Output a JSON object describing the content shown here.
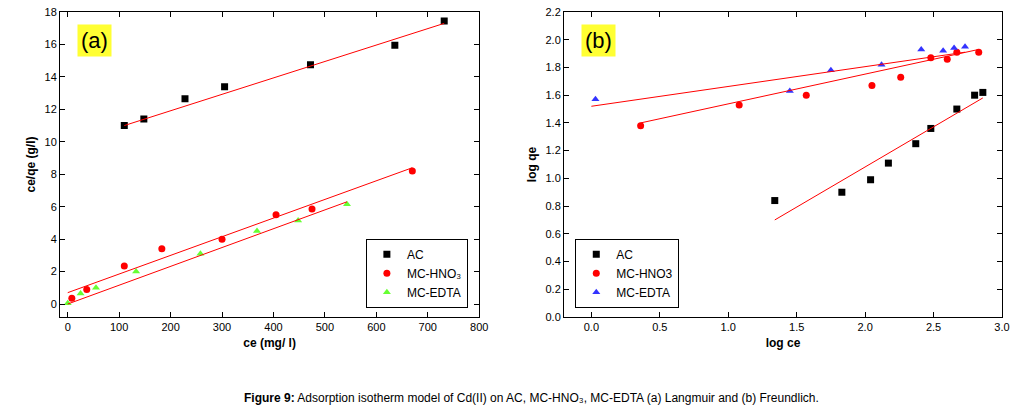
{
  "caption": "Figure 9: Adsorption isotherm model of Cd(II) on AC, MC-HNO₃, MC-EDTA (a) Langmuir and (b) Freundlich.",
  "chart_data": [
    {
      "type": "scatter",
      "title": "(a)",
      "x_label": "ce (mg/ l)",
      "y_label": "ce/qe (g/l)",
      "xlim": [
        -15,
        800
      ],
      "xticks": [
        0,
        100,
        200,
        300,
        400,
        500,
        600,
        700,
        800
      ],
      "ylim": [
        -0.8,
        18
      ],
      "yticks": [
        0,
        2,
        4,
        6,
        8,
        10,
        12,
        14,
        16,
        18
      ],
      "grid": false,
      "legend": "lower right",
      "series": [
        {
          "name": "AC",
          "type": "scatter",
          "color": "#000000",
          "marker": "square",
          "x": [
            110,
            148,
            228,
            305,
            472,
            636,
            732
          ],
          "values": [
            11.0,
            11.4,
            12.65,
            13.4,
            14.75,
            15.95,
            17.45
          ]
        },
        {
          "name": "MC-HNO₃",
          "type": "scatter",
          "color": "#ff0000",
          "marker": "circle",
          "x": [
            8,
            37,
            110,
            183,
            300,
            405,
            475,
            670
          ],
          "values": [
            0.35,
            0.9,
            2.35,
            3.4,
            4.0,
            5.5,
            5.85,
            8.2
          ]
        },
        {
          "name": "MC-EDTA",
          "type": "scatter",
          "color": "#66ff33",
          "marker": "triangle-up",
          "x": [
            0,
            25,
            55,
            133,
            258,
            368,
            448,
            543
          ],
          "values": [
            0.05,
            0.65,
            1.0,
            2.0,
            3.1,
            4.5,
            5.15,
            6.15
          ]
        },
        {
          "type": "line",
          "color": "#ff0000",
          "line_style": "solid",
          "x": [
            110,
            732
          ],
          "values": [
            11.0,
            17.3
          ]
        },
        {
          "type": "line",
          "color": "#ff0000",
          "line_style": "solid",
          "x": [
            0,
            670
          ],
          "values": [
            0.7,
            8.4
          ]
        },
        {
          "type": "line",
          "color": "#ff0000",
          "line_style": "solid",
          "x": [
            0,
            543
          ],
          "values": [
            0.0,
            6.3
          ]
        }
      ]
    },
    {
      "type": "scatter",
      "title": "(b)",
      "x_label": "log ce",
      "y_label": "log qe",
      "xlim": [
        -0.2,
        3.0
      ],
      "xticks": [
        {
          "value": 0,
          "label": "0.0"
        },
        0.5,
        {
          "value": 1,
          "label": "1.0"
        },
        1.5,
        {
          "value": 2,
          "label": "2.0"
        },
        2.5,
        {
          "value": 3,
          "label": "3.0"
        }
      ],
      "ylim": [
        0,
        2.2
      ],
      "yticks": [
        {
          "value": 0,
          "label": "0.0"
        },
        0.2,
        0.4,
        0.6,
        0.8,
        {
          "value": 1,
          "label": "1.0"
        },
        1.2,
        1.4,
        1.6,
        1.8,
        {
          "value": 2,
          "label": "2.0"
        },
        2.2
      ],
      "grid": false,
      "legend": "lower left",
      "series": [
        {
          "name": "AC",
          "type": "scatter",
          "color": "#000000",
          "marker": "square",
          "x": [
            1.34,
            1.83,
            2.04,
            2.17,
            2.37,
            2.48,
            2.67,
            2.8,
            2.86
          ],
          "values": [
            0.84,
            0.9,
            0.99,
            1.11,
            1.25,
            1.36,
            1.5,
            1.6,
            1.62
          ]
        },
        {
          "name": "MC-HNO3",
          "type": "scatter",
          "color": "#ff0000",
          "marker": "circle",
          "x": [
            0.36,
            1.08,
            1.57,
            2.05,
            2.26,
            2.48,
            2.6,
            2.67,
            2.83
          ],
          "values": [
            1.38,
            1.53,
            1.6,
            1.67,
            1.73,
            1.87,
            1.86,
            1.91,
            1.91
          ]
        },
        {
          "name": "MC-EDTA",
          "type": "scatter",
          "color": "#3333ff",
          "marker": "triangle-up",
          "x": [
            0.03,
            1.45,
            1.75,
            2.12,
            2.41,
            2.57,
            2.65,
            2.73
          ],
          "values": [
            1.57,
            1.63,
            1.78,
            1.82,
            1.93,
            1.92,
            1.94,
            1.95
          ]
        },
        {
          "type": "line",
          "color": "#ff0000",
          "line_style": "solid",
          "x": [
            1.34,
            2.86
          ],
          "values": [
            0.7,
            1.58
          ]
        },
        {
          "type": "line",
          "color": "#ff0000",
          "line_style": "solid",
          "x": [
            0.36,
            2.83
          ],
          "values": [
            1.4,
            1.93
          ]
        },
        {
          "type": "line",
          "color": "#ff0000",
          "line_style": "solid",
          "x": [
            0,
            2.73
          ],
          "values": [
            1.52,
            1.91
          ]
        }
      ]
    }
  ]
}
